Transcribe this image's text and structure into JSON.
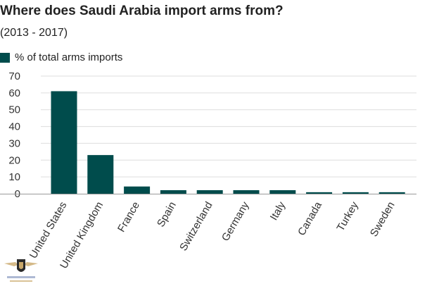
{
  "chart_data": {
    "type": "bar",
    "title": "Where does Saudi Arabia import arms from?",
    "subtitle": "(2013 - 2017)",
    "categories": [
      "United States",
      "United Kingdom",
      "France",
      "Spain",
      "Switzerland",
      "Germany",
      "Italy",
      "Canada",
      "Turkey",
      "Sweden"
    ],
    "series": [
      {
        "name": "% of total arms imports",
        "values": [
          61,
          23,
          4.3,
          2.1,
          2.1,
          2.1,
          2.1,
          0.9,
          0.9,
          0.9
        ]
      }
    ],
    "ylim": [
      0,
      70
    ],
    "yticks": [
      "0",
      "10",
      "20",
      "30",
      "40",
      "50",
      "60",
      "70"
    ],
    "grid": true,
    "legend": "top-left",
    "bar_color": "#004c4c"
  }
}
